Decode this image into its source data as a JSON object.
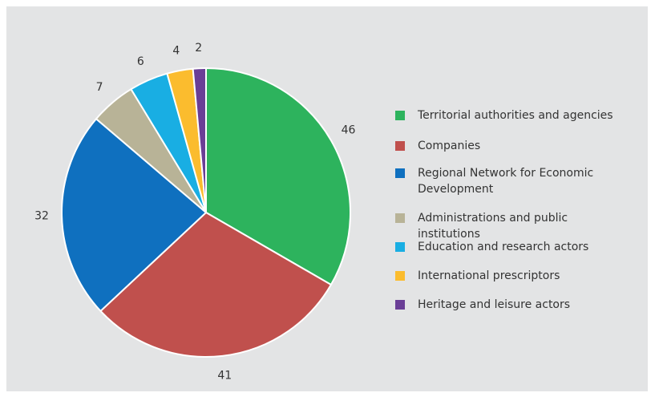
{
  "chart_data": {
    "type": "pie",
    "title": "",
    "series": [
      {
        "label": "Territorial authorities and agencies",
        "value": 46,
        "color": "#2db35d"
      },
      {
        "label": "Companies",
        "value": 41,
        "color": "#c0504d"
      },
      {
        "label": "Regional Network for Economic Development",
        "value": 32,
        "color": "#0f70bf"
      },
      {
        "label": "Administrations and public institutions",
        "value": 7,
        "color": "#b8b397"
      },
      {
        "label": "Education and research actors",
        "value": 6,
        "color": "#19aee3"
      },
      {
        "label": "International prescriptors",
        "value": 4,
        "color": "#fbbc2e"
      },
      {
        "label": "Heritage and leisure actors",
        "value": 2,
        "color": "#6a3e96"
      }
    ],
    "legend_position": "right",
    "background": "#e3e4e5"
  }
}
